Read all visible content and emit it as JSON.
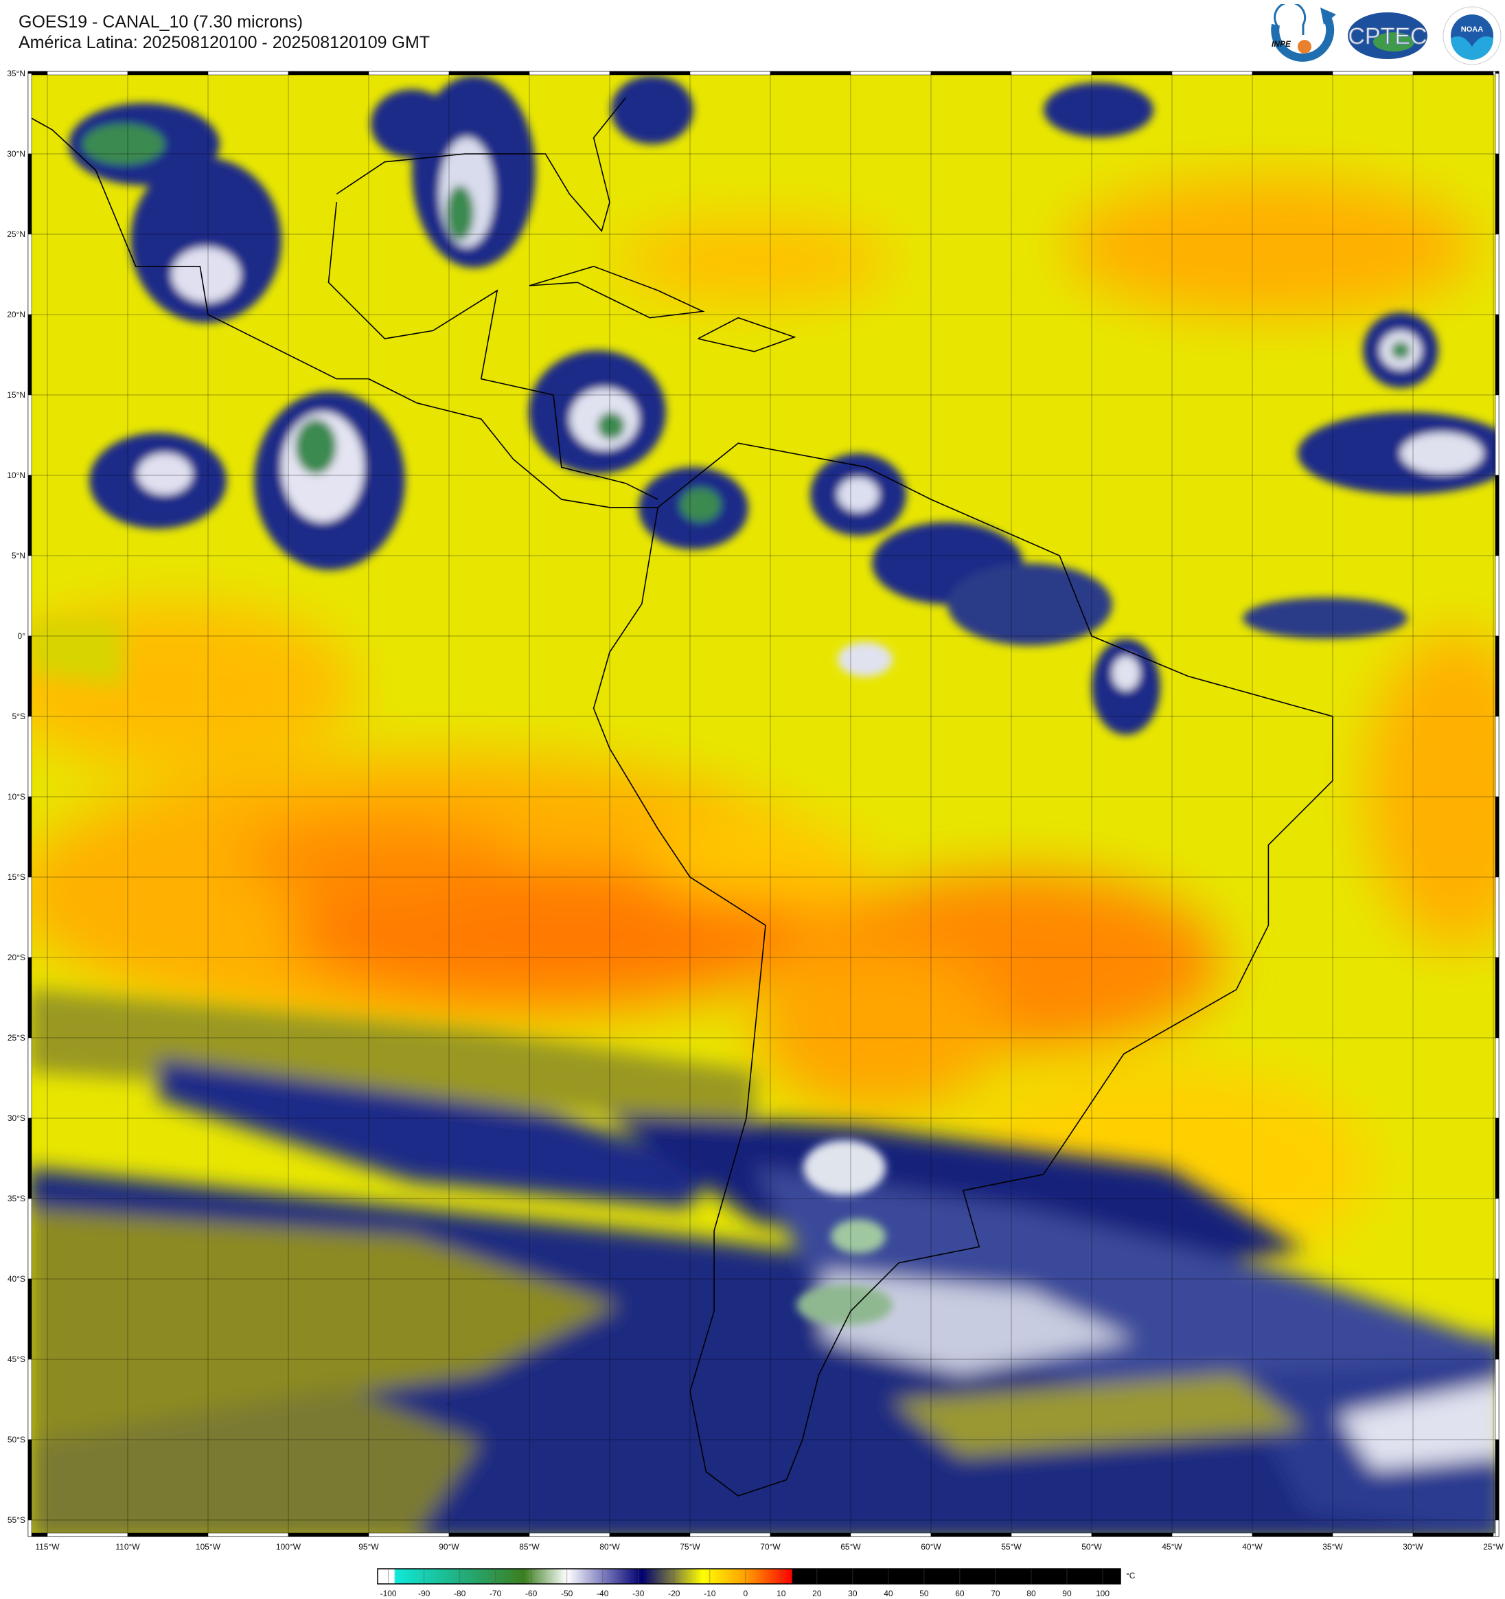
{
  "header": {
    "title": "GOES19 - CANAL_10 (7.30 microns)",
    "subtitle": "América Latina: 202508120100 - 202508120109 GMT"
  },
  "logos": [
    {
      "name": "INPE",
      "text": "INPE",
      "color": "#1f6fb0",
      "accent": "#e8812d"
    },
    {
      "name": "CPTEC",
      "text": "CPTEC",
      "color": "#1c4f9c"
    },
    {
      "name": "NOAA",
      "text": "NOAA",
      "ring_text": "NATIONAL OCEANIC AND ATMOSPHERIC ADMINISTRATION · U.S. DEPARTMENT OF COMMERCE",
      "color": "#1d5aa8"
    }
  ],
  "map": {
    "extent": {
      "lon": [
        -116.2,
        -24.7
      ],
      "lat": [
        -55.9,
        35.1
      ]
    },
    "grid": true,
    "lat_ticks": [
      "35°N",
      "30°N",
      "25°N",
      "20°N",
      "15°N",
      "10°N",
      "5°N",
      "0°",
      "5°S",
      "10°S",
      "15°S",
      "20°S",
      "25°S",
      "30°S",
      "35°S",
      "40°S",
      "45°S",
      "50°S",
      "55°S"
    ],
    "lon_ticks": [
      "115°W",
      "110°W",
      "105°W",
      "100°W",
      "95°W",
      "90°W",
      "85°W",
      "80°W",
      "75°W",
      "70°W",
      "65°W",
      "60°W",
      "55°W",
      "50°W",
      "45°W",
      "40°W",
      "35°W",
      "30°W",
      "25°W"
    ]
  },
  "colorbar": {
    "unit": "°C",
    "labels": [
      "-100",
      "-90",
      "-80",
      "-70",
      "-60",
      "-50",
      "-40",
      "-30",
      "-20",
      "-10",
      "0",
      "10",
      "20",
      "30",
      "40",
      "50",
      "60",
      "70",
      "80",
      "90",
      "100"
    ],
    "range": [
      -103,
      105
    ],
    "stops": [
      {
        "value": -103,
        "color": "#ffffff"
      },
      {
        "value": -98.5,
        "color": "#ffffff"
      },
      {
        "value": -98,
        "color": "#10e8d8"
      },
      {
        "value": -80,
        "color": "#20b080"
      },
      {
        "value": -62,
        "color": "#3c7e20"
      },
      {
        "value": -50,
        "color": "#ffffff"
      },
      {
        "value": -40,
        "color": "#8080c0"
      },
      {
        "value": -29,
        "color": "#000070"
      },
      {
        "value": -20,
        "color": "#808040"
      },
      {
        "value": -12,
        "color": "#ffff00"
      },
      {
        "value": 0,
        "color": "#ffa000"
      },
      {
        "value": 13,
        "color": "#ff0000"
      },
      {
        "value": 13.1,
        "color": "#000000"
      },
      {
        "value": 105,
        "color": "#000000"
      }
    ]
  },
  "imagery_colors": {
    "dry_warm": "#ff7800",
    "warm": "#ffa500",
    "mid": "#e8e600",
    "moist": "#8c8a20",
    "cold": "#141e7a",
    "very_cold": "#e4e4f0",
    "coldest": "#3a8a50",
    "coastline": "#000000"
  }
}
